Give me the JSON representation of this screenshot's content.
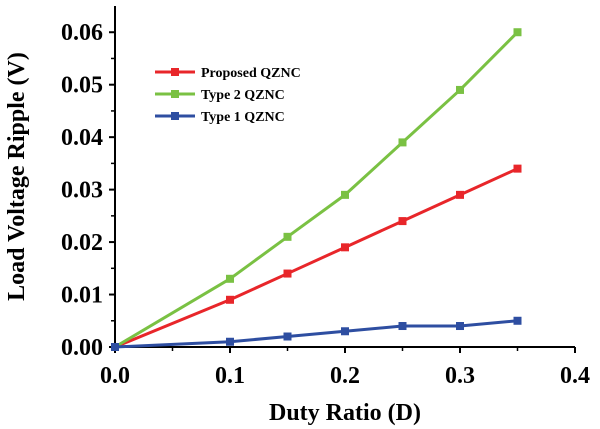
{
  "chart_data": {
    "type": "line",
    "title": "",
    "xlabel": "Duty Ratio (D)",
    "ylabel": "Load Voltage Ripple (V)",
    "xlim": [
      0.0,
      0.4
    ],
    "ylim": [
      0.0,
      0.065
    ],
    "xticks": [
      0.0,
      0.1,
      0.2,
      0.3,
      0.4
    ],
    "xtick_labels": [
      "0.0",
      "0.1",
      "0.2",
      "0.3",
      "0.4"
    ],
    "yticks": [
      0.0,
      0.01,
      0.02,
      0.03,
      0.04,
      0.05,
      0.06
    ],
    "ytick_labels": [
      "0.00",
      "0.01",
      "0.02",
      "0.03",
      "0.04",
      "0.05",
      "0.06"
    ],
    "grid": false,
    "legend_position": "top-left",
    "x": [
      0.0,
      0.1,
      0.15,
      0.2,
      0.25,
      0.3,
      0.35
    ],
    "series": [
      {
        "name": "Proposed QZNC",
        "color": "#e8262a",
        "values": [
          0.0,
          0.009,
          0.014,
          0.019,
          0.024,
          0.029,
          0.034
        ]
      },
      {
        "name": "Type 2 QZNC",
        "color": "#7ac143",
        "values": [
          0.0,
          0.013,
          0.021,
          0.029,
          0.039,
          0.049,
          0.06
        ]
      },
      {
        "name": "Type 1 QZNC",
        "color": "#2e4ea1",
        "values": [
          0.0,
          0.001,
          0.002,
          0.003,
          0.004,
          0.004,
          0.005
        ]
      }
    ]
  }
}
